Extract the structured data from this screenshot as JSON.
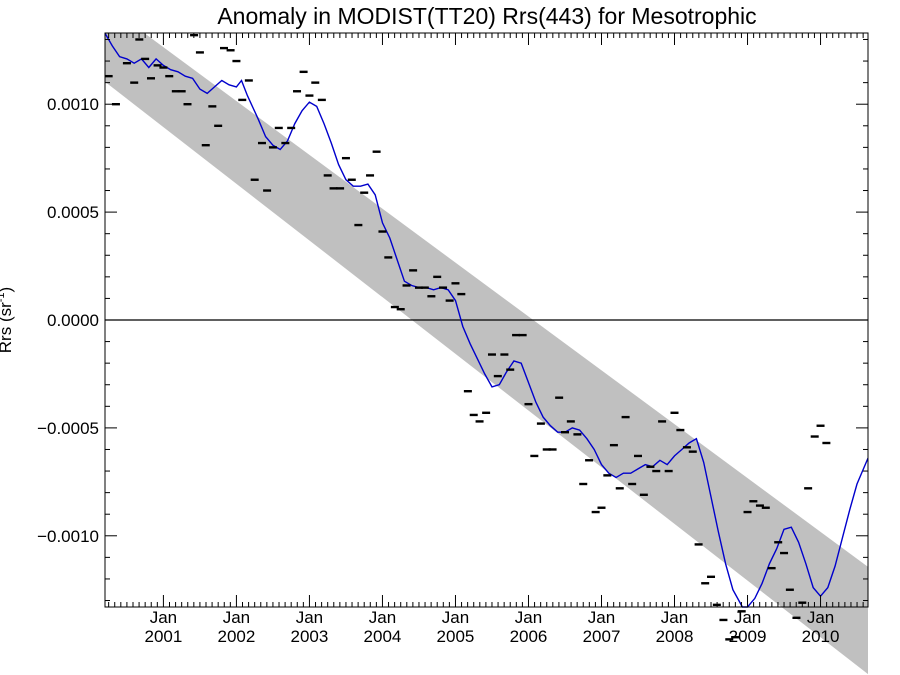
{
  "chart_data": {
    "type": "scatter",
    "title": "Anomaly in MODIST(TT20) Rrs(443) for Mesotrophic",
    "ylabel": "Rrs (sr",
    "ylabel_sup": "-1",
    "ylabel_close": ")",
    "xlabel": "",
    "xlim": [
      2000.2,
      2010.65
    ],
    "ylim": [
      -0.00133,
      0.00133
    ],
    "grid": false,
    "legend": "none",
    "x_ticks": [
      {
        "month": "Jan",
        "year": "2001",
        "x": 2001.0
      },
      {
        "month": "Jan",
        "year": "2002",
        "x": 2002.0
      },
      {
        "month": "Jan",
        "year": "2003",
        "x": 2003.0
      },
      {
        "month": "Jan",
        "year": "2004",
        "x": 2004.0
      },
      {
        "month": "Jan",
        "year": "2005",
        "x": 2005.0
      },
      {
        "month": "Jan",
        "year": "2006",
        "x": 2006.0
      },
      {
        "month": "Jan",
        "year": "2007",
        "x": 2007.0
      },
      {
        "month": "Jan",
        "year": "2008",
        "x": 2008.0
      },
      {
        "month": "Jan",
        "year": "2009",
        "x": 2009.0
      },
      {
        "month": "Jan",
        "year": "2010",
        "x": 2010.0
      }
    ],
    "y_ticks": [
      {
        "label": "0.0010",
        "y": 0.001
      },
      {
        "label": "0.0005",
        "y": 0.0005
      },
      {
        "label": "0.0000",
        "y": 0.0
      },
      {
        "label": "−0.0005",
        "y": -0.0005
      },
      {
        "label": "−0.0010",
        "y": -0.001
      }
    ],
    "zero_line": 0.0,
    "trend_band": {
      "color": "#c0c0c0",
      "upper": [
        [
          2000.2,
          0.001464
        ],
        [
          2010.65,
          -0.001144
        ]
      ],
      "lower": [
        [
          2000.2,
          0.001104
        ],
        [
          2010.65,
          -0.001641
        ]
      ]
    },
    "smoothed_series": {
      "color": "#0000cc",
      "points": [
        [
          2000.2,
          0.001329
        ],
        [
          2000.3,
          0.00127
        ],
        [
          2000.4,
          0.00122
        ],
        [
          2000.5,
          0.00121
        ],
        [
          2000.6,
          0.00119
        ],
        [
          2000.7,
          0.00121
        ],
        [
          2000.8,
          0.00117
        ],
        [
          2000.9,
          0.00121
        ],
        [
          2001.0,
          0.00118
        ],
        [
          2001.1,
          0.00116
        ],
        [
          2001.2,
          0.00115
        ],
        [
          2001.3,
          0.00113
        ],
        [
          2001.4,
          0.00112
        ],
        [
          2001.5,
          0.00107
        ],
        [
          2001.6,
          0.00105
        ],
        [
          2001.7,
          0.00108
        ],
        [
          2001.8,
          0.00111
        ],
        [
          2001.9,
          0.00109
        ],
        [
          2002.0,
          0.00108
        ],
        [
          2002.07,
          0.00111
        ],
        [
          2002.15,
          0.00104
        ],
        [
          2002.3,
          0.00093
        ],
        [
          2002.4,
          0.00085
        ],
        [
          2002.5,
          0.00081
        ],
        [
          2002.6,
          0.00079
        ],
        [
          2002.7,
          0.00083
        ],
        [
          2002.8,
          0.00091
        ],
        [
          2002.9,
          0.00097
        ],
        [
          2003.0,
          0.00101
        ],
        [
          2003.1,
          0.00099
        ],
        [
          2003.2,
          0.00091
        ],
        [
          2003.3,
          0.00082
        ],
        [
          2003.4,
          0.00072
        ],
        [
          2003.5,
          0.00065
        ],
        [
          2003.6,
          0.00062
        ],
        [
          2003.7,
          0.00062
        ],
        [
          2003.8,
          0.00063
        ],
        [
          2003.9,
          0.00058
        ],
        [
          2004.0,
          0.00045
        ],
        [
          2004.1,
          0.00038
        ],
        [
          2004.2,
          0.00028
        ],
        [
          2004.3,
          0.00018
        ],
        [
          2004.4,
          0.00016
        ],
        [
          2004.5,
          0.00015
        ],
        [
          2004.6,
          0.00015
        ],
        [
          2004.7,
          0.00014
        ],
        [
          2004.8,
          0.00015
        ],
        [
          2004.9,
          0.00014
        ],
        [
          2005.0,
          9e-05
        ],
        [
          2005.1,
          -3e-05
        ],
        [
          2005.2,
          -0.00011
        ],
        [
          2005.3,
          -0.00018
        ],
        [
          2005.4,
          -0.00025
        ],
        [
          2005.5,
          -0.00031
        ],
        [
          2005.6,
          -0.0003
        ],
        [
          2005.7,
          -0.00024
        ],
        [
          2005.8,
          -0.00019
        ],
        [
          2005.9,
          -0.0002
        ],
        [
          2006.0,
          -0.00029
        ],
        [
          2006.1,
          -0.00038
        ],
        [
          2006.2,
          -0.00045
        ],
        [
          2006.3,
          -0.00049
        ],
        [
          2006.4,
          -0.00052
        ],
        [
          2006.5,
          -0.00052
        ],
        [
          2006.6,
          -0.0005
        ],
        [
          2006.7,
          -0.00051
        ],
        [
          2006.8,
          -0.00055
        ],
        [
          2006.9,
          -0.0006
        ],
        [
          2007.0,
          -0.00067
        ],
        [
          2007.1,
          -0.00071
        ],
        [
          2007.2,
          -0.00073
        ],
        [
          2007.3,
          -0.00071
        ],
        [
          2007.4,
          -0.00071
        ],
        [
          2007.5,
          -0.00069
        ],
        [
          2007.6,
          -0.00067
        ],
        [
          2007.7,
          -0.00068
        ],
        [
          2007.8,
          -0.00065
        ],
        [
          2007.9,
          -0.00067
        ],
        [
          2008.0,
          -0.00063
        ],
        [
          2008.1,
          -0.0006
        ],
        [
          2008.2,
          -0.00057
        ],
        [
          2008.3,
          -0.00055
        ],
        [
          2008.4,
          -0.00066
        ],
        [
          2008.5,
          -0.00082
        ],
        [
          2008.6,
          -0.00098
        ],
        [
          2008.7,
          -0.00113
        ],
        [
          2008.8,
          -0.00125
        ],
        [
          2008.93,
          -0.00133
        ],
        [
          2009.0,
          -0.00133
        ],
        [
          2009.1,
          -0.00129
        ],
        [
          2009.2,
          -0.00122
        ],
        [
          2009.3,
          -0.00113
        ],
        [
          2009.4,
          -0.00106
        ],
        [
          2009.5,
          -0.00097
        ],
        [
          2009.6,
          -0.00096
        ],
        [
          2009.7,
          -0.00103
        ],
        [
          2009.8,
          -0.00113
        ],
        [
          2009.9,
          -0.00124
        ],
        [
          2010.0,
          -0.00128
        ],
        [
          2010.1,
          -0.00124
        ],
        [
          2010.2,
          -0.00114
        ],
        [
          2010.3,
          -0.00101
        ],
        [
          2010.4,
          -0.00088
        ],
        [
          2010.5,
          -0.00076
        ],
        [
          2010.65,
          -0.00064
        ]
      ]
    },
    "monthly_points": {
      "color": "#000000",
      "points": [
        [
          2000.25,
          0.00113
        ],
        [
          2000.35,
          0.001
        ],
        [
          2000.5,
          0.00119
        ],
        [
          2000.6,
          0.0011
        ],
        [
          2000.67,
          0.0013
        ],
        [
          2000.75,
          0.00121
        ],
        [
          2000.83,
          0.00112
        ],
        [
          2000.92,
          0.00118
        ],
        [
          2001.0,
          0.00117
        ],
        [
          2001.08,
          0.00113
        ],
        [
          2001.17,
          0.00106
        ],
        [
          2001.25,
          0.00106
        ],
        [
          2001.33,
          0.001
        ],
        [
          2001.42,
          0.00132
        ],
        [
          2001.5,
          0.00124
        ],
        [
          2001.58,
          0.00081
        ],
        [
          2001.67,
          0.00099
        ],
        [
          2001.75,
          0.0009
        ],
        [
          2001.83,
          0.00126
        ],
        [
          2001.92,
          0.00125
        ],
        [
          2002.0,
          0.0012
        ],
        [
          2002.08,
          0.00102
        ],
        [
          2002.17,
          0.00111
        ],
        [
          2002.25,
          0.00065
        ],
        [
          2002.35,
          0.00082
        ],
        [
          2002.42,
          0.0006
        ],
        [
          2002.5,
          0.0008
        ],
        [
          2002.58,
          0.00089
        ],
        [
          2002.67,
          0.00082
        ],
        [
          2002.75,
          0.00089
        ],
        [
          2002.83,
          0.00106
        ],
        [
          2002.92,
          0.00115
        ],
        [
          2003.0,
          0.00104
        ],
        [
          2003.08,
          0.0011
        ],
        [
          2003.17,
          0.00102
        ],
        [
          2003.25,
          0.00067
        ],
        [
          2003.33,
          0.00061
        ],
        [
          2003.42,
          0.00061
        ],
        [
          2003.5,
          0.00075
        ],
        [
          2003.58,
          0.00065
        ],
        [
          2003.67,
          0.00044
        ],
        [
          2003.75,
          0.00059
        ],
        [
          2003.83,
          0.00067
        ],
        [
          2003.92,
          0.00078
        ],
        [
          2004.0,
          0.00041
        ],
        [
          2004.08,
          0.00029
        ],
        [
          2004.17,
          6e-05
        ],
        [
          2004.25,
          5e-05
        ],
        [
          2004.33,
          0.00016
        ],
        [
          2004.42,
          0.00023
        ],
        [
          2004.5,
          0.00015
        ],
        [
          2004.58,
          0.00015
        ],
        [
          2004.67,
          0.00011
        ],
        [
          2004.75,
          0.0002
        ],
        [
          2004.83,
          0.00015
        ],
        [
          2004.92,
          9e-05
        ],
        [
          2005.0,
          0.00017
        ],
        [
          2005.08,
          0.00012
        ],
        [
          2005.17,
          -0.00033
        ],
        [
          2005.25,
          -0.00044
        ],
        [
          2005.33,
          -0.00047
        ],
        [
          2005.42,
          -0.00043
        ],
        [
          2005.5,
          -0.00016
        ],
        [
          2005.58,
          -0.00026
        ],
        [
          2005.67,
          -0.00016
        ],
        [
          2005.75,
          -0.00023
        ],
        [
          2005.83,
          -7e-05
        ],
        [
          2005.92,
          -7e-05
        ],
        [
          2006.0,
          -0.00039
        ],
        [
          2006.08,
          -0.00063
        ],
        [
          2006.17,
          -0.00048
        ],
        [
          2006.25,
          -0.0006
        ],
        [
          2006.33,
          -0.0006
        ],
        [
          2006.42,
          -0.00036
        ],
        [
          2006.5,
          -0.00052
        ],
        [
          2006.58,
          -0.00047
        ],
        [
          2006.67,
          -0.00053
        ],
        [
          2006.75,
          -0.00076
        ],
        [
          2006.83,
          -0.00065
        ],
        [
          2006.92,
          -0.00089
        ],
        [
          2007.0,
          -0.00087
        ],
        [
          2007.08,
          -0.00072
        ],
        [
          2007.17,
          -0.00058
        ],
        [
          2007.25,
          -0.00078
        ],
        [
          2007.33,
          -0.00045
        ],
        [
          2007.42,
          -0.00076
        ],
        [
          2007.5,
          -0.00063
        ],
        [
          2007.58,
          -0.00081
        ],
        [
          2007.67,
          -0.00068
        ],
        [
          2007.75,
          -0.0007
        ],
        [
          2007.83,
          -0.00047
        ],
        [
          2007.92,
          -0.0007
        ],
        [
          2008.0,
          -0.00043
        ],
        [
          2008.08,
          -0.00051
        ],
        [
          2008.17,
          -0.00059
        ],
        [
          2008.25,
          -0.00061
        ],
        [
          2008.33,
          -0.00104
        ],
        [
          2008.42,
          -0.00122
        ],
        [
          2008.5,
          -0.00119
        ],
        [
          2008.58,
          -0.00132
        ],
        [
          2008.67,
          -0.00139
        ],
        [
          2008.75,
          -0.00148
        ],
        [
          2008.83,
          -0.00147
        ],
        [
          2008.92,
          -0.00135
        ],
        [
          2009.0,
          -0.00089
        ],
        [
          2009.08,
          -0.00084
        ],
        [
          2009.17,
          -0.00086
        ],
        [
          2009.25,
          -0.00087
        ],
        [
          2009.33,
          -0.00115
        ],
        [
          2009.42,
          -0.00103
        ],
        [
          2009.5,
          -0.00108
        ],
        [
          2009.58,
          -0.00125
        ],
        [
          2009.67,
          -0.00138
        ],
        [
          2009.75,
          -0.00131
        ],
        [
          2009.83,
          -0.00078
        ],
        [
          2009.92,
          -0.00054
        ],
        [
          2010.0,
          -0.00049
        ],
        [
          2010.08,
          -0.00057
        ]
      ]
    }
  }
}
